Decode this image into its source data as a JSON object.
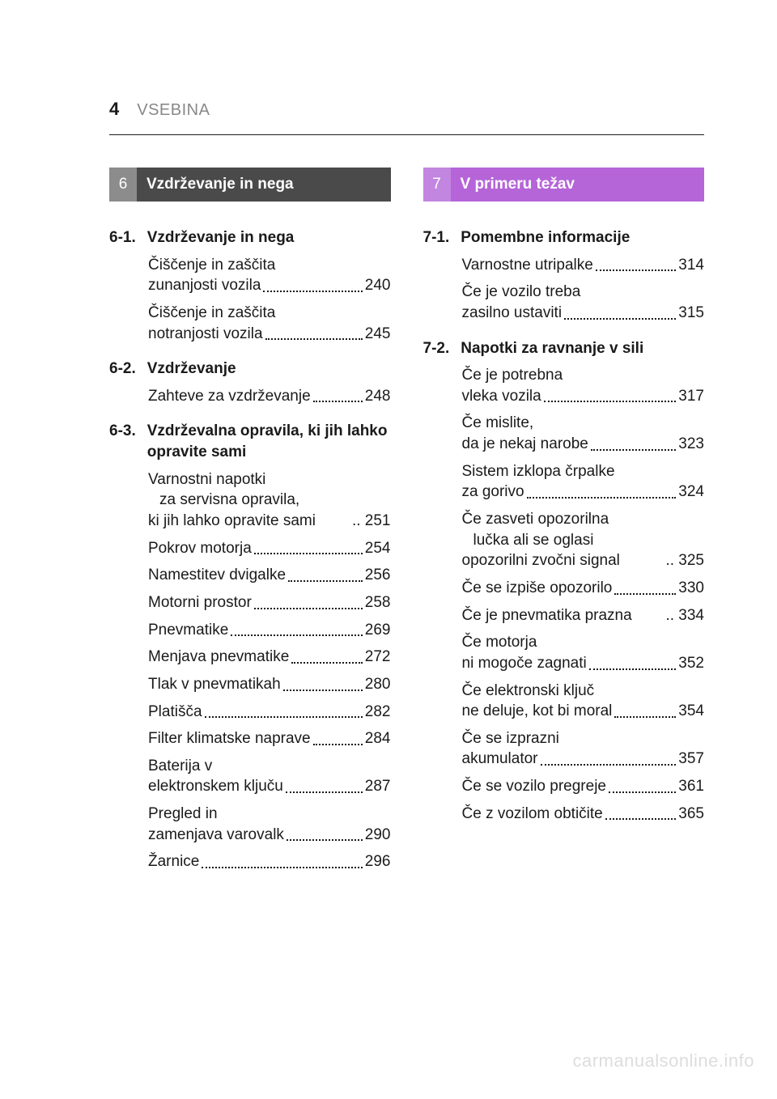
{
  "header": {
    "page_number": "4",
    "section_label": "VSEBINA"
  },
  "columns": [
    {
      "tab": {
        "num": "6",
        "title": "Vzdrževanje in nega",
        "num_bg": "#8c8c8c",
        "title_bg": "#4a4a4a"
      },
      "sections": [
        {
          "num": "6-1.",
          "title": "Vzdrževanje in nega",
          "entries": [
            {
              "lines": [
                "Čiščenje in zaščita",
                "zunanjosti vozila"
              ],
              "page": "240",
              "dots": true
            },
            {
              "lines": [
                "Čiščenje in zaščita",
                "notranjosti vozila"
              ],
              "page": "245",
              "dots": true
            }
          ]
        },
        {
          "num": "6-2.",
          "title": "Vzdrževanje",
          "entries": [
            {
              "lines": [
                "Zahteve za vzdrževanje"
              ],
              "page": "248",
              "dots": true
            }
          ]
        },
        {
          "num": "6-3.",
          "title": "Vzdrževalna opravila, ki jih lahko opravite sami",
          "entries": [
            {
              "lines": [
                "Varnostni napotki",
                "za servisna opravila,",
                "ki jih lahko opravite sami"
              ],
              "page": "251",
              "dots": false
            },
            {
              "lines": [
                "Pokrov motorja"
              ],
              "page": "254",
              "dots": true
            },
            {
              "lines": [
                "Namestitev dvigalke"
              ],
              "page": "256",
              "dots": true
            },
            {
              "lines": [
                "Motorni prostor"
              ],
              "page": "258",
              "dots": true
            },
            {
              "lines": [
                "Pnevmatike"
              ],
              "page": "269",
              "dots": true
            },
            {
              "lines": [
                "Menjava pnevmatike"
              ],
              "page": "272",
              "dots": true
            },
            {
              "lines": [
                "Tlak v pnevmatikah"
              ],
              "page": "280",
              "dots": true
            },
            {
              "lines": [
                "Platišča"
              ],
              "page": "282",
              "dots": true
            },
            {
              "lines": [
                "Filter klimatske naprave"
              ],
              "page": "284",
              "dots": true
            },
            {
              "lines": [
                "Baterija v",
                "elektronskem ključu"
              ],
              "page": "287",
              "dots": true
            },
            {
              "lines": [
                "Pregled in",
                "zamenjava varovalk"
              ],
              "page": "290",
              "dots": true
            },
            {
              "lines": [
                "Žarnice"
              ],
              "page": "296",
              "dots": true
            }
          ]
        }
      ]
    },
    {
      "tab": {
        "num": "7",
        "title": "V primeru težav",
        "num_bg": "#c285e0",
        "title_bg": "#b565d8"
      },
      "sections": [
        {
          "num": "7-1.",
          "title": "Pomembne informacije",
          "entries": [
            {
              "lines": [
                "Varnostne utripalke"
              ],
              "page": "314",
              "dots": true
            },
            {
              "lines": [
                "Če je vozilo treba",
                "zasilno ustaviti"
              ],
              "page": "315",
              "dots": true
            }
          ]
        },
        {
          "num": "7-2.",
          "title": "Napotki za ravnanje v sili",
          "entries": [
            {
              "lines": [
                "Če je potrebna",
                "vleka vozila"
              ],
              "page": "317",
              "dots": true
            },
            {
              "lines": [
                "Če mislite,",
                "da je nekaj narobe"
              ],
              "page": "323",
              "dots": true
            },
            {
              "lines": [
                "Sistem izklopa črpalke",
                "za gorivo"
              ],
              "page": "324",
              "dots": true
            },
            {
              "lines": [
                "Če zasveti opozorilna",
                "lučka ali se oglasi",
                "opozorilni zvočni signal"
              ],
              "page": "325",
              "dots": false
            },
            {
              "lines": [
                "Če se izpiše opozorilo"
              ],
              "page": "330",
              "dots": true
            },
            {
              "lines": [
                "Če je pnevmatika prazna"
              ],
              "page": "334",
              "dots": false
            },
            {
              "lines": [
                "Če motorja",
                "ni mogoče zagnati"
              ],
              "page": "352",
              "dots": true
            },
            {
              "lines": [
                "Če elektronski ključ",
                "ne deluje, kot bi moral"
              ],
              "page": "354",
              "dots": true
            },
            {
              "lines": [
                "Če se izprazni",
                "akumulator"
              ],
              "page": "357",
              "dots": true
            },
            {
              "lines": [
                "Če se vozilo pregreje"
              ],
              "page": "361",
              "dots": true
            },
            {
              "lines": [
                "Če z vozilom obtičite"
              ],
              "page": "365",
              "dots": true
            }
          ]
        }
      ]
    }
  ],
  "watermark": "carmanualsonline.info"
}
